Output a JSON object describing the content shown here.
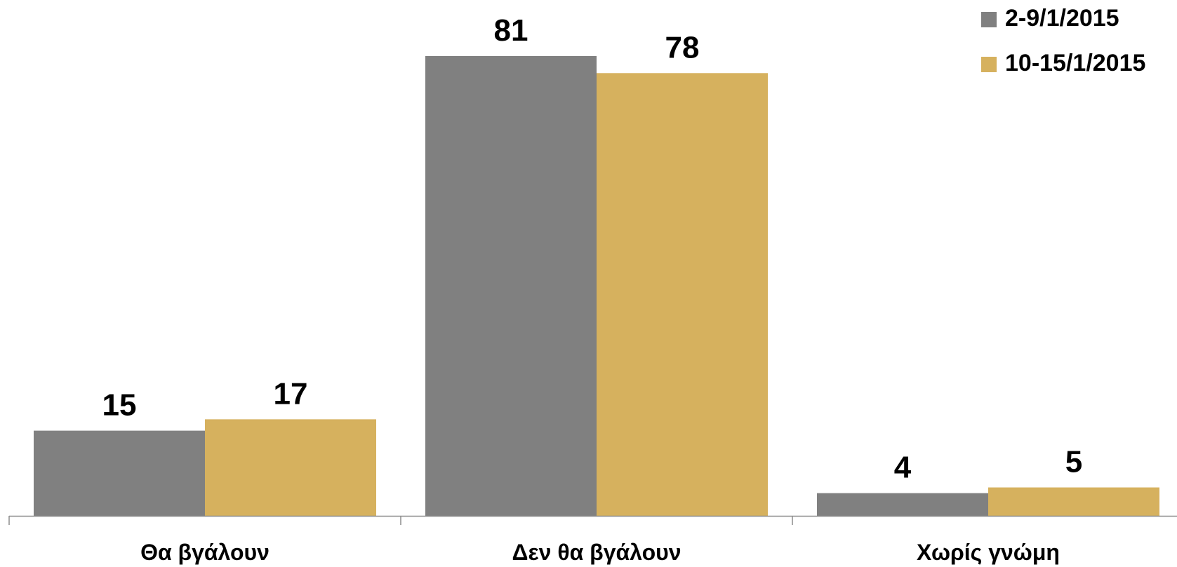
{
  "chart_data": {
    "type": "bar",
    "categories": [
      "Θα βγάλουν",
      "Δεν θα βγάλουν",
      "Χωρίς γνώμη"
    ],
    "series": [
      {
        "name": "2-9/1/2015",
        "values": [
          15,
          81,
          4
        ],
        "color": "#808080"
      },
      {
        "name": "10-15/1/2015",
        "values": [
          17,
          78,
          5
        ],
        "color": "#D6B15E"
      }
    ],
    "ylim": [
      0,
      81
    ],
    "grid": false,
    "legend_position": "top-right",
    "data_labels": true
  }
}
